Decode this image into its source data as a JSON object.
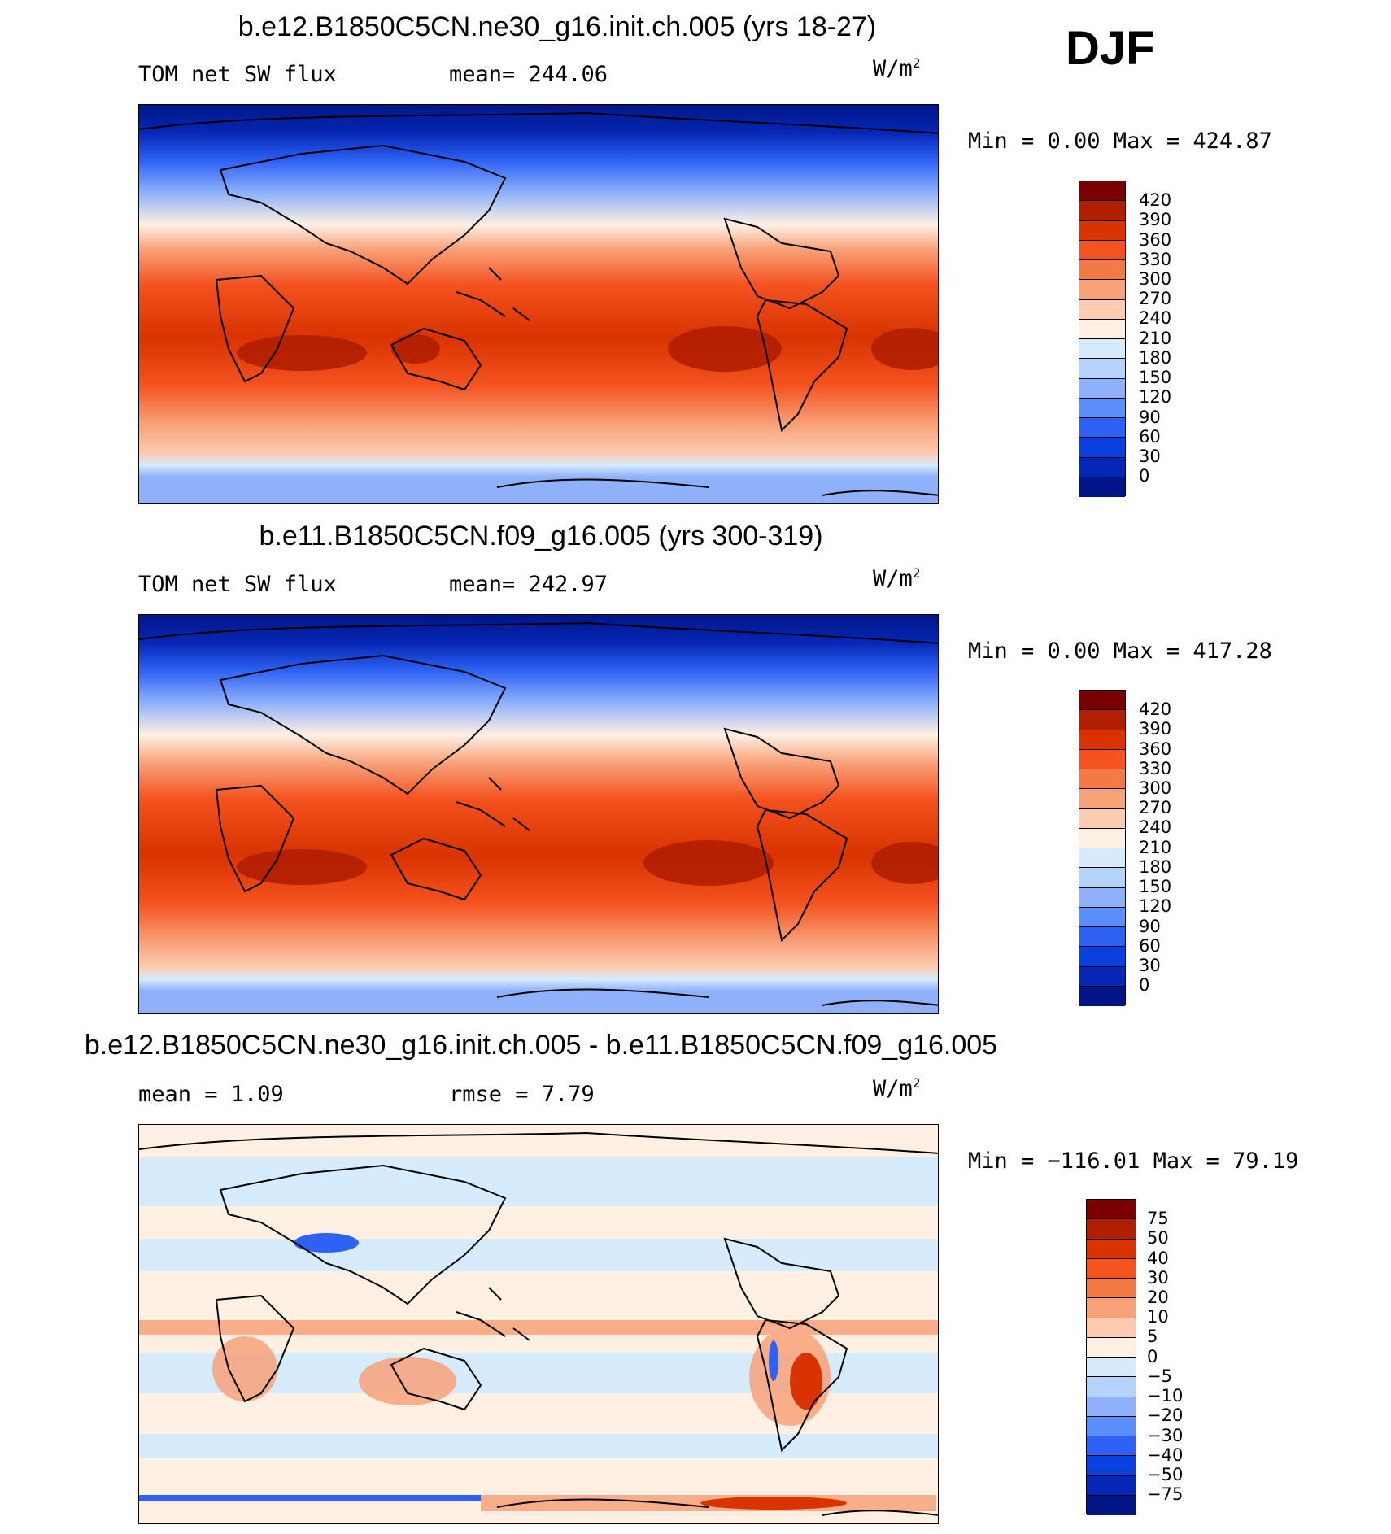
{
  "season": "DJF",
  "panels": [
    {
      "title": "b.e12.B1850C5CN.ne30_g16.init.ch.005 (yrs 18-27)",
      "variable": "TOM net SW flux",
      "stat1": "mean=  244.06",
      "units": "W/m",
      "units_exp": "2",
      "minmax": "Min  =     0.00  Max  =  424.87",
      "colorbar": {
        "labels": [
          "420",
          "390",
          "360",
          "330",
          "300",
          "270",
          "240",
          "210",
          "180",
          "150",
          "120",
          "90",
          "60",
          "30",
          "0"
        ],
        "colors": [
          "#7a0000",
          "#b01f00",
          "#d83300",
          "#f4521f",
          "#f47a45",
          "#f8a27a",
          "#fdcbb0",
          "#fff0e3",
          "#d6ebfc",
          "#b3d3fb",
          "#8fb1fb",
          "#5b8dfb",
          "#2d62f5",
          "#0a3fe0",
          "#0627b6",
          "#001687"
        ]
      }
    },
    {
      "title": "b.e11.B1850C5CN.f09_g16.005 (yrs 300-319)",
      "variable": "TOM net SW flux",
      "stat1": "mean=  242.97",
      "units": "W/m",
      "units_exp": "2",
      "minmax": "Min  =     0.00  Max  =  417.28",
      "colorbar": {
        "labels": [
          "420",
          "390",
          "360",
          "330",
          "300",
          "270",
          "240",
          "210",
          "180",
          "150",
          "120",
          "90",
          "60",
          "30",
          "0"
        ],
        "colors": [
          "#7a0000",
          "#b01f00",
          "#d83300",
          "#f4521f",
          "#f47a45",
          "#f8a27a",
          "#fdcbb0",
          "#fff0e3",
          "#d6ebfc",
          "#b3d3fb",
          "#8fb1fb",
          "#5b8dfb",
          "#2d62f5",
          "#0a3fe0",
          "#0627b6",
          "#001687"
        ]
      }
    },
    {
      "title": "b.e12.B1850C5CN.ne30_g16.init.ch.005 - b.e11.B1850C5CN.f09_g16.005",
      "variable": "mean  =     1.09",
      "stat1": "rmse  =     7.79",
      "units": "W/m",
      "units_exp": "2",
      "minmax": "Min  = −116.01  Max  =   79.19",
      "colorbar": {
        "labels": [
          "75",
          "50",
          "40",
          "30",
          "20",
          "10",
          "5",
          "0",
          "−5",
          "−10",
          "−20",
          "−30",
          "−40",
          "−50",
          "−75"
        ],
        "colors": [
          "#7a0000",
          "#b01f00",
          "#d83300",
          "#f4521f",
          "#f47a45",
          "#f8a27a",
          "#fdcbb0",
          "#fff0e3",
          "#d6ebfc",
          "#b3d3fb",
          "#8fb1fb",
          "#5b8dfb",
          "#2d62f5",
          "#0a3fe0",
          "#0627b6",
          "#001687"
        ]
      }
    }
  ]
}
